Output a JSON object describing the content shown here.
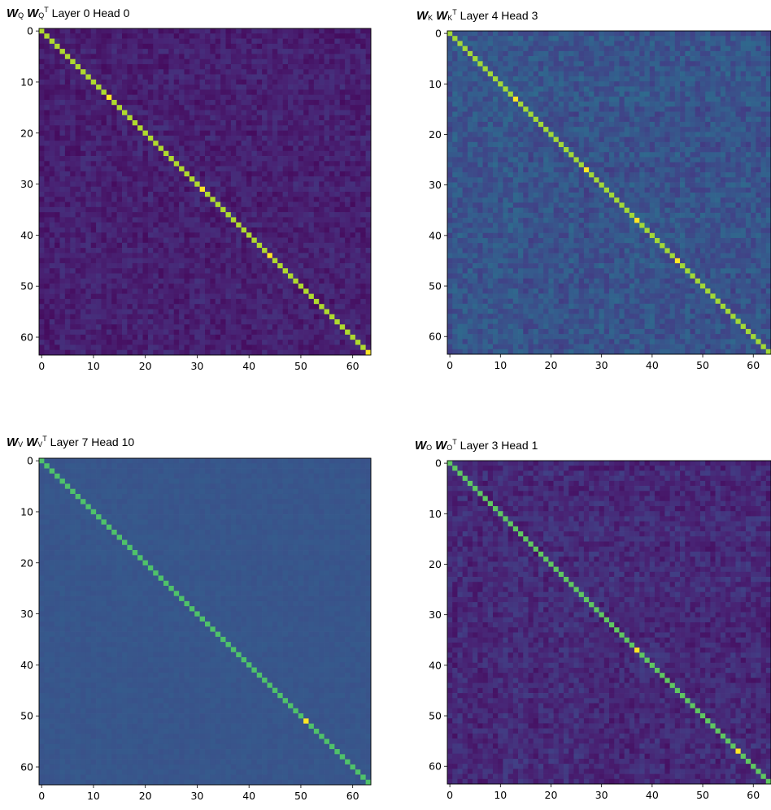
{
  "chart_data": [
    {
      "type": "heatmap",
      "title": {
        "m1": "W",
        "s1": "Q",
        "m2": "W",
        "s2": "Q",
        "sup": "T",
        "rest": " Layer 0 Head 0"
      },
      "size": 64,
      "xticks": [
        0,
        10,
        20,
        30,
        40,
        50,
        60
      ],
      "yticks": [
        0,
        10,
        20,
        30,
        40,
        50,
        60
      ],
      "colormap": "viridis",
      "diag_value": 0.88,
      "off_diag_mean": 0.09,
      "off_diag_noise": 0.05,
      "bright_diag": [
        13,
        31,
        44,
        63
      ],
      "seed": 11
    },
    {
      "type": "heatmap",
      "title": {
        "m1": "W",
        "s1": "K",
        "m2": "W",
        "s2": "K",
        "sup": "T",
        "rest": " Layer 4 Head 3"
      },
      "size": 64,
      "xticks": [
        0,
        10,
        20,
        30,
        40,
        50,
        60
      ],
      "yticks": [
        0,
        10,
        20,
        30,
        40,
        50,
        60
      ],
      "colormap": "viridis",
      "diag_value": 0.86,
      "off_diag_mean": 0.26,
      "off_diag_noise": 0.07,
      "bright_diag": [
        13,
        27,
        37,
        45
      ],
      "seed": 23
    },
    {
      "type": "heatmap",
      "title": {
        "m1": "W",
        "s1": "V",
        "m2": "W",
        "s2": "V",
        "sup": "T",
        "rest": " Layer 7 Head 10"
      },
      "size": 64,
      "xticks": [
        0,
        10,
        20,
        30,
        40,
        50,
        60
      ],
      "yticks": [
        0,
        10,
        20,
        30,
        40,
        50,
        60
      ],
      "colormap": "viridis",
      "diag_value": 0.72,
      "off_diag_mean": 0.27,
      "off_diag_noise": 0.015,
      "bright_diag": [
        51
      ],
      "seed": 37
    },
    {
      "type": "heatmap",
      "title": {
        "m1": "W",
        "s1": "O",
        "m2": "W",
        "s2": "O",
        "sup": "T",
        "rest": " Layer 3 Head 1"
      },
      "size": 64,
      "xticks": [
        0,
        10,
        20,
        30,
        40,
        50,
        60
      ],
      "yticks": [
        0,
        10,
        20,
        30,
        40,
        50,
        60
      ],
      "colormap": "viridis",
      "diag_value": 0.75,
      "off_diag_mean": 0.12,
      "off_diag_noise": 0.06,
      "bright_diag": [
        37,
        57
      ],
      "seed": 51
    }
  ]
}
